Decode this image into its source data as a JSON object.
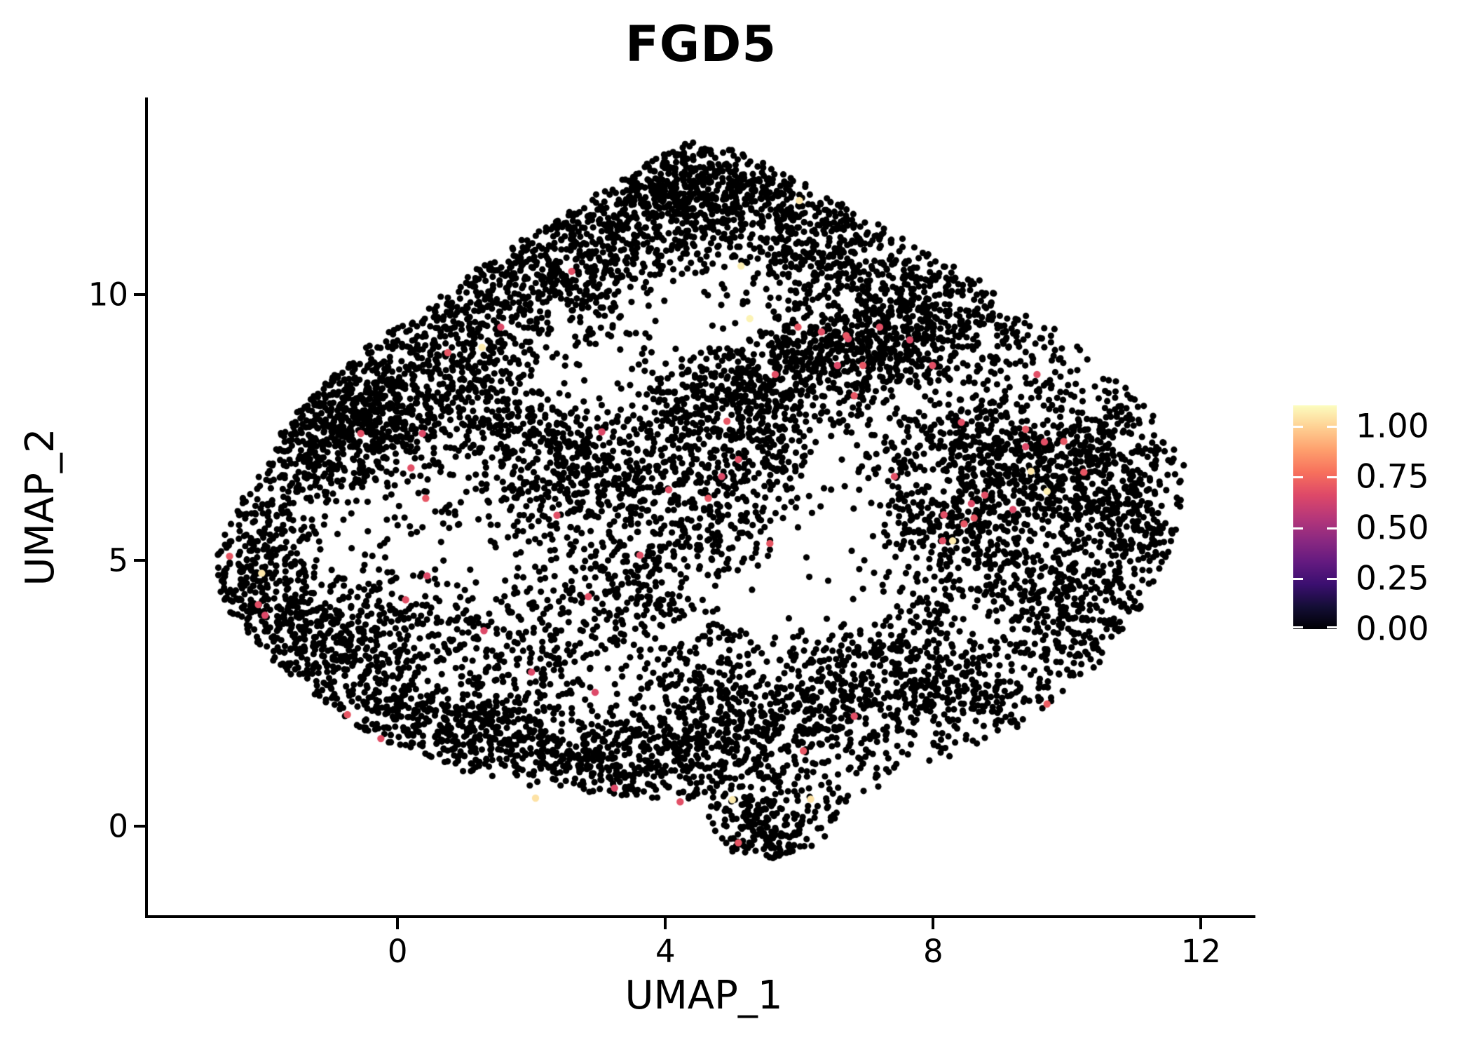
{
  "figure": {
    "background": "#ffffff"
  },
  "chart_data": {
    "type": "scatter",
    "title": "FGD5",
    "xlabel": "UMAP_1",
    "ylabel": "UMAP_2",
    "xlim": [
      -3.74,
      12.77
    ],
    "ylim": [
      -1.7,
      13.71
    ],
    "x_ticks": [
      {
        "value": 0,
        "label": "0"
      },
      {
        "value": 4,
        "label": "4"
      },
      {
        "value": 8,
        "label": "8"
      },
      {
        "value": 12,
        "label": "12"
      }
    ],
    "y_ticks": [
      {
        "value": 0,
        "label": "0"
      },
      {
        "value": 5,
        "label": "5"
      },
      {
        "value": 10,
        "label": "10"
      }
    ],
    "grid": false,
    "legend_position": "right",
    "point_color_default": "#000000",
    "point_radius_px": 4.6,
    "highlight_radius_px": 5.2,
    "colorbar": {
      "min": 0.0,
      "max": 1.104,
      "colormap": "magma",
      "tick_values": [
        1.0,
        0.75,
        0.5,
        0.25,
        0.0
      ],
      "tick_labels": [
        "1.00",
        "0.75",
        "0.50",
        "0.25",
        "0.00"
      ],
      "stops": [
        [
          0.0,
          "#000004"
        ],
        [
          0.1,
          "#140e36"
        ],
        [
          0.2,
          "#3b0f70"
        ],
        [
          0.3,
          "#641a80"
        ],
        [
          0.4,
          "#8c2981"
        ],
        [
          0.5,
          "#b73779"
        ],
        [
          0.6,
          "#de4968"
        ],
        [
          0.7,
          "#f7705c"
        ],
        [
          0.8,
          "#fe9f6d"
        ],
        [
          0.9,
          "#fecf92"
        ],
        [
          1.0,
          "#fcfdbf"
        ]
      ]
    },
    "cloud": {
      "seed": 42,
      "background_n": 2100,
      "polygon": [
        [
          4.6,
          12.95
        ],
        [
          5.7,
          12.35
        ],
        [
          6.8,
          11.6
        ],
        [
          8.45,
          10.45
        ],
        [
          9.4,
          9.75
        ],
        [
          10.85,
          8.35
        ],
        [
          11.45,
          7.55
        ],
        [
          11.85,
          6.75
        ],
        [
          11.65,
          5.55
        ],
        [
          11.3,
          4.55
        ],
        [
          10.75,
          3.35
        ],
        [
          10.05,
          2.55
        ],
        [
          9.25,
          1.85
        ],
        [
          8.35,
          1.35
        ],
        [
          7.35,
          0.85
        ],
        [
          6.62,
          0.4
        ],
        [
          6.5,
          -0.1
        ],
        [
          6.2,
          -0.45
        ],
        [
          5.6,
          -0.6
        ],
        [
          5.0,
          -0.5
        ],
        [
          4.72,
          -0.05
        ],
        [
          4.55,
          0.45
        ],
        [
          3.75,
          0.5
        ],
        [
          2.75,
          0.65
        ],
        [
          1.75,
          0.8
        ],
        [
          0.75,
          1.1
        ],
        [
          -0.35,
          1.7
        ],
        [
          -1.15,
          2.3
        ],
        [
          -1.85,
          3.1
        ],
        [
          -2.45,
          3.9
        ],
        [
          -2.78,
          4.75
        ],
        [
          -2.6,
          5.55
        ],
        [
          -2.25,
          6.35
        ],
        [
          -1.85,
          7.2
        ],
        [
          -1.35,
          8.1
        ],
        [
          -0.75,
          8.8
        ],
        [
          0.25,
          9.6
        ],
        [
          0.95,
          10.3
        ],
        [
          1.75,
          10.95
        ],
        [
          2.65,
          11.65
        ],
        [
          3.45,
          12.3
        ],
        [
          4.05,
          12.75
        ]
      ],
      "clusters": [
        [
          4.55,
          12.25,
          0.55,
          0.42,
          170
        ],
        [
          3.95,
          11.85,
          0.7,
          0.5,
          200
        ],
        [
          5.3,
          11.6,
          0.8,
          0.55,
          200
        ],
        [
          3.0,
          11.1,
          0.8,
          0.55,
          210
        ],
        [
          6.3,
          10.9,
          0.8,
          0.6,
          190
        ],
        [
          2.2,
          10.3,
          0.85,
          0.6,
          230
        ],
        [
          7.2,
          10.2,
          0.8,
          0.6,
          170
        ],
        [
          1.2,
          9.5,
          0.7,
          0.6,
          200
        ],
        [
          8.2,
          9.7,
          0.7,
          0.55,
          160
        ],
        [
          -0.55,
          7.7,
          0.55,
          0.5,
          330
        ],
        [
          -1.3,
          7.0,
          0.5,
          0.6,
          200
        ],
        [
          0.3,
          8.4,
          0.7,
          0.6,
          200
        ],
        [
          -2.2,
          5.0,
          0.45,
          0.8,
          190
        ],
        [
          -1.7,
          3.9,
          0.5,
          0.6,
          160
        ],
        [
          -0.8,
          2.9,
          0.6,
          0.55,
          160
        ],
        [
          0.2,
          2.1,
          0.8,
          0.5,
          170
        ],
        [
          4.6,
          7.9,
          0.6,
          0.5,
          190
        ],
        [
          5.6,
          8.4,
          0.6,
          0.5,
          200
        ],
        [
          6.6,
          8.9,
          0.6,
          0.5,
          200
        ],
        [
          7.6,
          9.1,
          0.55,
          0.45,
          170
        ],
        [
          8.6,
          7.2,
          0.8,
          0.8,
          290
        ],
        [
          9.6,
          6.6,
          0.7,
          0.7,
          230
        ],
        [
          8.2,
          5.9,
          0.7,
          0.7,
          200
        ],
        [
          9.2,
          4.9,
          0.8,
          0.7,
          200
        ],
        [
          10.6,
          6.9,
          0.5,
          0.8,
          190
        ],
        [
          10.9,
          5.6,
          0.45,
          0.8,
          160
        ],
        [
          10.2,
          3.9,
          0.7,
          0.6,
          170
        ],
        [
          3.3,
          6.9,
          0.7,
          0.55,
          200
        ],
        [
          2.3,
          6.3,
          0.6,
          0.5,
          160
        ],
        [
          4.4,
          5.7,
          0.7,
          0.6,
          170
        ],
        [
          3.4,
          4.6,
          0.7,
          0.55,
          160
        ],
        [
          5.4,
          6.9,
          0.6,
          0.5,
          140
        ],
        [
          1.6,
          7.6,
          0.6,
          0.5,
          140
        ],
        [
          1.1,
          1.9,
          0.7,
          0.5,
          170
        ],
        [
          2.4,
          1.5,
          0.8,
          0.45,
          200
        ],
        [
          3.8,
          1.2,
          0.8,
          0.45,
          200
        ],
        [
          5.2,
          1.7,
          0.7,
          0.5,
          200
        ],
        [
          6.4,
          2.3,
          0.7,
          0.55,
          190
        ],
        [
          7.6,
          2.9,
          0.7,
          0.6,
          170
        ],
        [
          4.6,
          2.6,
          0.7,
          0.5,
          150
        ],
        [
          8.7,
          2.6,
          0.6,
          0.5,
          140
        ],
        [
          0.0,
          3.9,
          0.6,
          0.6,
          140
        ],
        [
          1.8,
          3.2,
          0.7,
          0.6,
          140
        ],
        [
          5.35,
          0.2,
          0.55,
          0.45,
          130
        ],
        [
          5.6,
          -0.35,
          0.35,
          0.25,
          50
        ]
      ],
      "holes": [
        [
          4.6,
          9.7,
          1.0,
          0.85
        ],
        [
          3.2,
          5.6,
          0.75,
          0.6
        ],
        [
          6.6,
          4.9,
          1.1,
          0.95
        ],
        [
          9.9,
          5.3,
          0.65,
          0.55
        ],
        [
          0.55,
          4.7,
          0.85,
          0.65
        ],
        [
          1.4,
          2.95,
          0.7,
          0.5
        ],
        [
          2.6,
          8.5,
          0.65,
          0.55
        ],
        [
          8.25,
          8.25,
          0.55,
          0.45
        ],
        [
          5.35,
          2.7,
          0.55,
          0.45
        ],
        [
          8.85,
          3.95,
          0.6,
          0.5
        ],
        [
          -0.9,
          6.0,
          0.5,
          0.45
        ],
        [
          5.2,
          4.4,
          0.7,
          0.6
        ],
        [
          7.0,
          6.0,
          0.8,
          0.7
        ],
        [
          6.3,
          6.9,
          0.55,
          0.45
        ]
      ],
      "extra_black_points": [
        [
          9.76,
          2.42
        ],
        [
          9.63,
          2.22
        ]
      ]
    },
    "highlights": [
      [
        2.6,
        10.44,
        0.68
      ],
      [
        1.54,
        9.39,
        0.66
      ],
      [
        5.98,
        9.39,
        0.7
      ],
      [
        6.33,
        9.3,
        0.68
      ],
      [
        6.73,
        9.17,
        0.66
      ],
      [
        6.7,
        9.23,
        0.7
      ],
      [
        7.2,
        9.39,
        0.68
      ],
      [
        7.65,
        9.15,
        0.66
      ],
      [
        6.95,
        8.67,
        0.7
      ],
      [
        7.99,
        8.67,
        0.68
      ],
      [
        6.57,
        8.67,
        0.66
      ],
      [
        6.82,
        8.1,
        0.7
      ],
      [
        5.64,
        8.5,
        0.68
      ],
      [
        4.92,
        7.62,
        0.7
      ],
      [
        5.09,
        6.9,
        0.68
      ],
      [
        4.84,
        6.58,
        0.66
      ],
      [
        4.05,
        6.33,
        0.68
      ],
      [
        4.64,
        6.17,
        0.7
      ],
      [
        2.38,
        5.85,
        0.68
      ],
      [
        0.37,
        7.39,
        0.66
      ],
      [
        0.2,
        6.74,
        0.68
      ],
      [
        0.42,
        6.17,
        0.7
      ],
      [
        -0.55,
        7.39,
        0.68
      ],
      [
        -2.51,
        5.08,
        0.7
      ],
      [
        -2.08,
        4.17,
        0.68
      ],
      [
        -1.98,
        3.97,
        0.66
      ],
      [
        -0.75,
        2.1,
        0.7
      ],
      [
        -0.25,
        1.65,
        0.68
      ],
      [
        0.44,
        4.71,
        0.66
      ],
      [
        0.12,
        4.26,
        0.68
      ],
      [
        9.7,
        2.3,
        0.72
      ],
      [
        5.09,
        -0.31,
        0.7
      ],
      [
        8.42,
        7.6,
        0.68
      ],
      [
        9.38,
        7.47,
        0.7
      ],
      [
        9.38,
        7.14,
        0.66
      ],
      [
        9.66,
        7.23,
        0.68
      ],
      [
        9.95,
        7.24,
        0.7
      ],
      [
        8.77,
        6.23,
        0.68
      ],
      [
        8.57,
        6.07,
        0.66
      ],
      [
        8.61,
        5.8,
        0.7
      ],
      [
        8.16,
        5.86,
        0.68
      ],
      [
        9.19,
        5.96,
        0.66
      ],
      [
        8.46,
        5.69,
        0.7
      ],
      [
        8.14,
        5.37,
        0.68
      ],
      [
        3.24,
        0.72,
        0.66
      ],
      [
        4.22,
        0.46,
        0.68
      ],
      [
        6.06,
        1.42,
        0.7
      ],
      [
        6.82,
        2.07,
        0.68
      ],
      [
        1.29,
        3.68,
        0.66
      ],
      [
        2.85,
        4.32,
        0.68
      ],
      [
        10.25,
        6.66,
        0.7
      ],
      [
        9.55,
        8.5,
        0.68
      ],
      [
        2.95,
        2.52,
        0.66
      ],
      [
        7.42,
        6.58,
        0.68
      ],
      [
        5.56,
        5.32,
        0.7
      ],
      [
        3.05,
        7.42,
        0.66
      ],
      [
        3.62,
        5.1,
        0.68
      ],
      [
        0.75,
        8.91,
        0.7
      ],
      [
        2.0,
        2.9,
        0.66
      ],
      [
        1.26,
        9.01,
        1.06
      ],
      [
        6.0,
        11.77,
        1.05
      ],
      [
        5.13,
        10.54,
        1.07
      ],
      [
        -2.03,
        4.76,
        1.05
      ],
      [
        5.0,
        0.5,
        1.06
      ],
      [
        6.17,
        0.51,
        1.04
      ],
      [
        5.26,
        9.55,
        1.08
      ],
      [
        9.46,
        6.68,
        1.05
      ],
      [
        8.29,
        5.37,
        1.06
      ],
      [
        2.06,
        0.53,
        1.04
      ],
      [
        9.7,
        6.3,
        1.07
      ]
    ]
  }
}
